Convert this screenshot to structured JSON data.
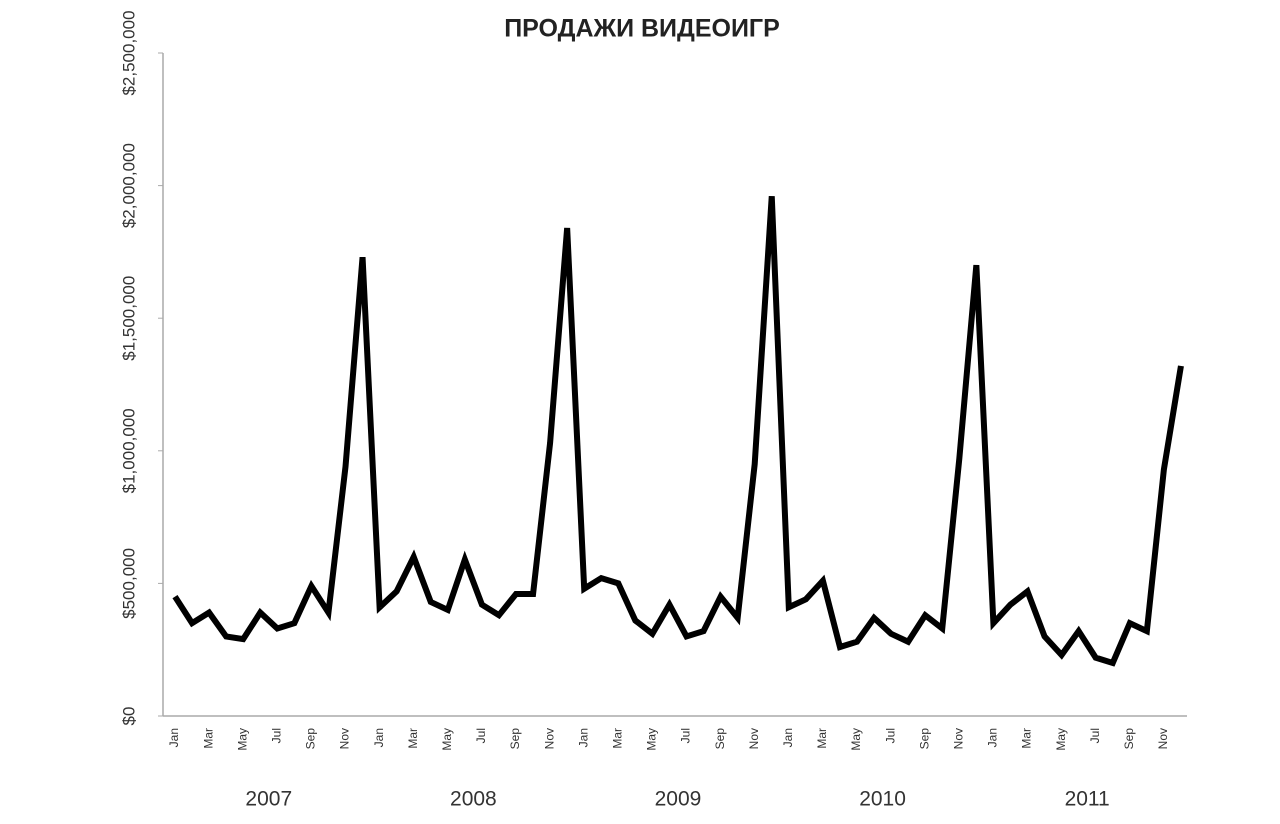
{
  "chart_data": {
    "type": "line",
    "title": "ПРОДАЖИ ВИДЕОИГР",
    "categories": [
      "Jan",
      null,
      "Mar",
      null,
      "May",
      null,
      "Jul",
      null,
      "Sep",
      null,
      "Nov",
      null,
      "Jan",
      null,
      "Mar",
      null,
      "May",
      null,
      "Jul",
      null,
      "Sep",
      null,
      "Nov",
      null,
      "Jan",
      null,
      "Mar",
      null,
      "May",
      null,
      "Jul",
      null,
      "Sep",
      null,
      "Nov",
      null,
      "Jan",
      null,
      "Mar",
      null,
      "May",
      null,
      "Jul",
      null,
      "Sep",
      null,
      "Nov",
      null,
      "Jan",
      null,
      "Mar",
      null,
      "May",
      null,
      "Jul",
      null,
      "Sep",
      null,
      "Nov",
      null
    ],
    "groups": [
      "2007",
      "2008",
      "2009",
      "2010",
      "2011"
    ],
    "values": [
      450000,
      350000,
      390000,
      300000,
      290000,
      390000,
      330000,
      350000,
      490000,
      390000,
      940000,
      1730000,
      410000,
      470000,
      600000,
      430000,
      400000,
      590000,
      420000,
      380000,
      460000,
      460000,
      1030000,
      1840000,
      480000,
      520000,
      500000,
      360000,
      310000,
      420000,
      300000,
      320000,
      450000,
      370000,
      950000,
      1960000,
      410000,
      440000,
      510000,
      260000,
      280000,
      370000,
      310000,
      280000,
      380000,
      330000,
      970000,
      1700000,
      350000,
      420000,
      470000,
      300000,
      230000,
      320000,
      220000,
      200000,
      350000,
      320000,
      930000,
      1320000
    ],
    "color": "#000000",
    "ylim": [
      0,
      2500000
    ],
    "yticks": [
      {
        "value": 0,
        "label": "$0"
      },
      {
        "value": 500000,
        "label": "$500,000"
      },
      {
        "value": 1000000,
        "label": "$1,000,000"
      },
      {
        "value": 1500000,
        "label": "$1,500,000"
      },
      {
        "value": 2000000,
        "label": "$2,000,000"
      },
      {
        "value": 2500000,
        "label": "$2,500,000"
      }
    ],
    "grid": false
  }
}
